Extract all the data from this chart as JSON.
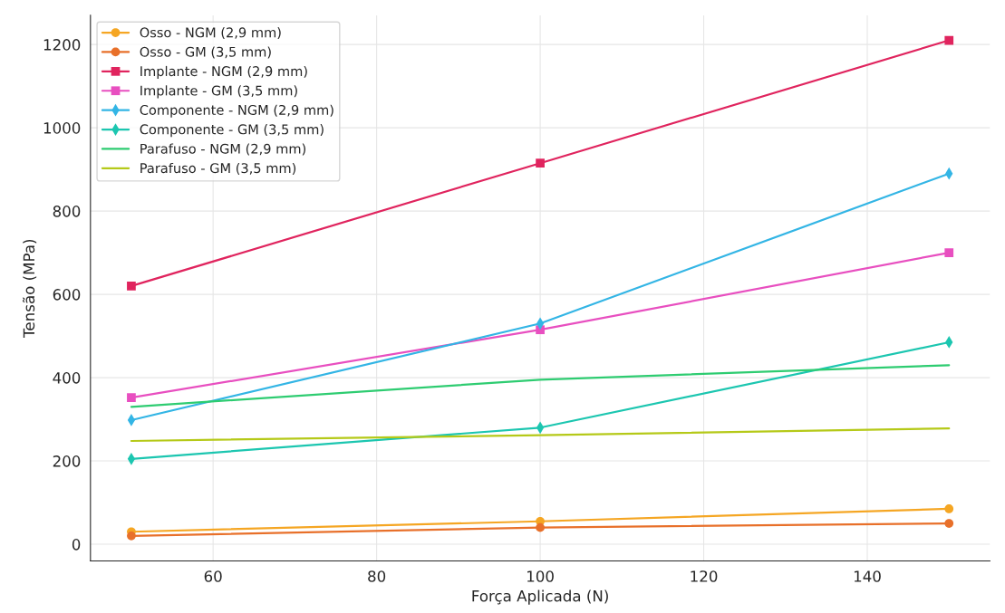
{
  "chart_data": {
    "type": "line",
    "xlabel": "Força Aplicada (N)",
    "ylabel": "Tensão (MPa)",
    "x": [
      50,
      100,
      150
    ],
    "series": [
      {
        "name": "Osso - NGM (2,9 mm)",
        "color": "#f5a623",
        "marker": "circle",
        "values": [
          30,
          55,
          85
        ]
      },
      {
        "name": "Osso - GM (3,5 mm)",
        "color": "#e8702a",
        "marker": "circle",
        "values": [
          20,
          40,
          50
        ]
      },
      {
        "name": "Implante - NGM (2,9 mm)",
        "color": "#e0245e",
        "marker": "square",
        "values": [
          620,
          915,
          1210
        ]
      },
      {
        "name": "Implante - GM (3,5 mm)",
        "color": "#e84fc0",
        "marker": "square",
        "values": [
          352,
          515,
          700
        ]
      },
      {
        "name": "Componente - NGM (2,9 mm)",
        "color": "#33b5e5",
        "marker": "diamond",
        "values": [
          298,
          530,
          890
        ]
      },
      {
        "name": "Componente - GM (3,5 mm)",
        "color": "#1cc6b0",
        "marker": "diamond",
        "values": [
          205,
          280,
          485
        ]
      },
      {
        "name": "Parafuso - NGM (2,9 mm)",
        "color": "#2ecc71",
        "marker": "none",
        "values": [
          330,
          395,
          430
        ]
      },
      {
        "name": "Parafuso - GM (3,5 mm)",
        "color": "#b5c918",
        "marker": "none",
        "values": [
          248,
          262,
          278
        ]
      }
    ],
    "xlim": [
      45,
      155
    ],
    "xticks": [
      60,
      80,
      100,
      120,
      140
    ],
    "ylim": [
      -40,
      1270
    ],
    "yticks": [
      0,
      200,
      400,
      600,
      800,
      1000,
      1200
    ],
    "grid": true,
    "legend": "top left"
  }
}
